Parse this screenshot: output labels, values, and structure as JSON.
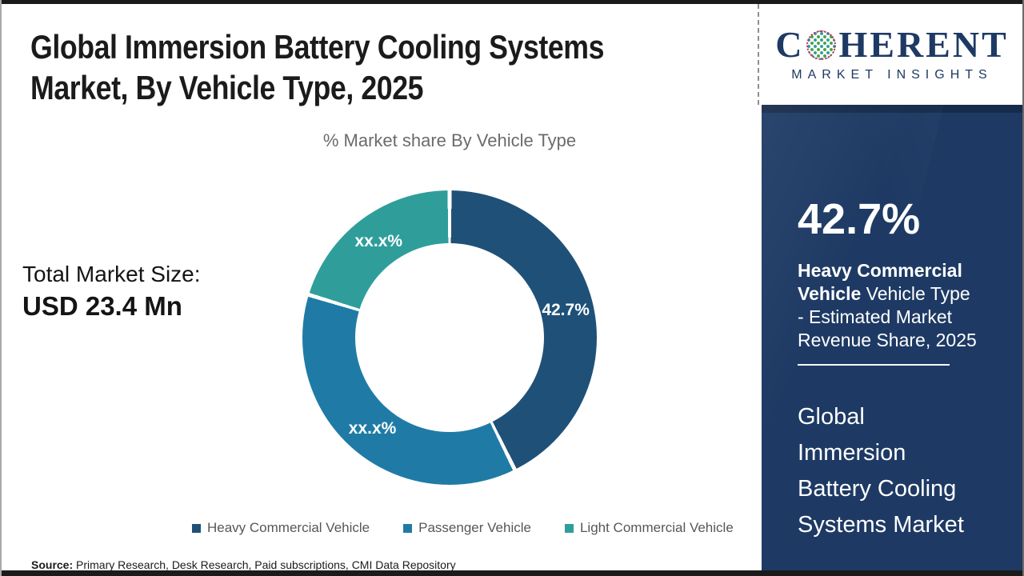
{
  "header": {
    "title": "Global Immersion Battery Cooling Systems Market, By Vehicle Type, 2025"
  },
  "chart_data": {
    "type": "pie",
    "subtype": "donut",
    "title": "% Market share By Vehicle Type",
    "categories": [
      "Heavy Commercial Vehicle",
      "Passenger Vehicle",
      "Light Commercial Vehicle"
    ],
    "values": [
      42.7,
      37.0,
      20.3
    ],
    "displayed_labels": [
      "42.7%",
      "xx.x%",
      "xx.x%"
    ],
    "colors": [
      "#1f5178",
      "#1f7ba6",
      "#2f9e9b"
    ],
    "legend_position": "bottom",
    "start_angle_deg": 0
  },
  "totals": {
    "label": "Total Market Size:",
    "value": "USD 23.4 Mn"
  },
  "source": {
    "prefix": "Source:",
    "text": " Primary Research, Desk Research, Paid subscriptions, CMI Data Repository"
  },
  "sidebar": {
    "logo": {
      "part1": "C",
      "part2": "HERENT",
      "subtitle": "MARKET INSIGHTS"
    },
    "stat_value": "42.7%",
    "stat_bold": "Heavy Commercial Vehicle",
    "stat_rest": " Vehicle Type - Estimated Market Revenue Share, 2025",
    "market_title": "Global Immersion Battery Cooling Systems Market"
  }
}
